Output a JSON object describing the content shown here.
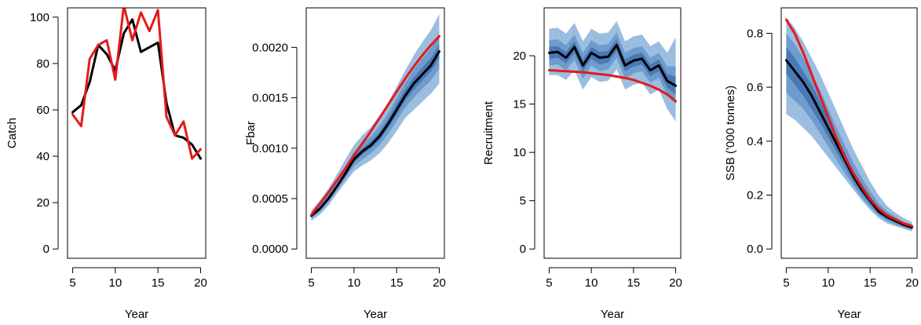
{
  "colors": {
    "band_outer": "#9bbde0",
    "band_mid": "#6e9ccc",
    "band_inner": "#4a78b4",
    "median_line": "#000000",
    "observed_line": "#e31a1c"
  },
  "chart_data": [
    {
      "type": "line",
      "xlabel": "Year",
      "ylabel": "Catch",
      "xlim": [
        5,
        20
      ],
      "ylim": [
        0,
        100
      ],
      "xticks": [
        "5",
        "10",
        "15",
        "20"
      ],
      "yticks": [
        "0",
        "20",
        "40",
        "60",
        "80",
        "100"
      ],
      "x": [
        5,
        6,
        7,
        8,
        9,
        10,
        11,
        12,
        13,
        14,
        15,
        16,
        17,
        18,
        19,
        20
      ],
      "series": [
        {
          "role": "median",
          "values": [
            59,
            62,
            72,
            88,
            84,
            77,
            93,
            99,
            85,
            87,
            89,
            63,
            49,
            48,
            45,
            39
          ]
        },
        {
          "role": "observed",
          "values": [
            58,
            53,
            82,
            88,
            90,
            73,
            105,
            90,
            102,
            94,
            103,
            57,
            49,
            55,
            39,
            43
          ]
        }
      ],
      "bands": []
    },
    {
      "type": "line",
      "xlabel": "Year",
      "ylabel": "Fbar",
      "xlim": [
        5,
        20
      ],
      "ylim": [
        0,
        0.0023
      ],
      "xticks": [
        "5",
        "10",
        "15",
        "20"
      ],
      "yticks": [
        "0.0000",
        "0.0005",
        "0.0010",
        "0.0015",
        "0.0020"
      ],
      "x": [
        5,
        6,
        7,
        8,
        9,
        10,
        11,
        12,
        13,
        14,
        15,
        16,
        17,
        18,
        19,
        20
      ],
      "series": [
        {
          "role": "median",
          "values": [
            0.00033,
            0.0004,
            0.0005,
            0.00062,
            0.00075,
            0.00089,
            0.00097,
            0.00103,
            0.00112,
            0.00124,
            0.00138,
            0.00152,
            0.00164,
            0.00173,
            0.00182,
            0.00196
          ]
        },
        {
          "role": "observed",
          "values": [
            0.00034,
            0.00045,
            0.00056,
            0.00068,
            0.0008,
            0.00093,
            0.00105,
            0.00117,
            0.0013,
            0.00143,
            0.00156,
            0.00169,
            0.00181,
            0.00192,
            0.00202,
            0.00211
          ]
        }
      ],
      "bands": [
        {
          "level": "outer",
          "lower": [
            0.00028,
            0.00034,
            0.00043,
            0.00055,
            0.00066,
            0.00077,
            0.00083,
            0.00088,
            0.00095,
            0.00105,
            0.00117,
            0.0013,
            0.00138,
            0.00146,
            0.00154,
            0.00164
          ],
          "upper": [
            0.00038,
            0.00048,
            0.0006,
            0.00074,
            0.00089,
            0.00103,
            0.00113,
            0.00121,
            0.00132,
            0.00145,
            0.00161,
            0.00177,
            0.00192,
            0.00205,
            0.00217,
            0.00233
          ]
        },
        {
          "level": "mid",
          "lower": [
            0.0003,
            0.00037,
            0.00046,
            0.00058,
            0.0007,
            0.00082,
            0.00089,
            0.00095,
            0.00103,
            0.00114,
            0.00127,
            0.0014,
            0.0015,
            0.00159,
            0.00167,
            0.00179
          ],
          "upper": [
            0.00036,
            0.00044,
            0.00055,
            0.00068,
            0.00082,
            0.00096,
            0.00105,
            0.00112,
            0.00122,
            0.00135,
            0.0015,
            0.00165,
            0.00178,
            0.00189,
            0.00199,
            0.00214
          ]
        },
        {
          "level": "inner",
          "lower": [
            0.00032,
            0.00039,
            0.00048,
            0.0006,
            0.00073,
            0.00086,
            0.00094,
            0.001,
            0.00108,
            0.0012,
            0.00133,
            0.00147,
            0.00158,
            0.00167,
            0.00176,
            0.00189
          ],
          "upper": [
            0.00034,
            0.00042,
            0.00052,
            0.00064,
            0.00078,
            0.00092,
            0.001,
            0.00107,
            0.00116,
            0.00129,
            0.00144,
            0.00158,
            0.0017,
            0.0018,
            0.00189,
            0.00203
          ]
        }
      ]
    },
    {
      "type": "line",
      "xlabel": "Year",
      "ylabel": "Recruitment",
      "xlim": [
        5,
        20
      ],
      "ylim": [
        0,
        24
      ],
      "xticks": [
        "5",
        "10",
        "15",
        "20"
      ],
      "yticks": [
        "0",
        "5",
        "10",
        "15",
        "20"
      ],
      "x": [
        5,
        6,
        7,
        8,
        9,
        10,
        11,
        12,
        13,
        14,
        15,
        16,
        17,
        18,
        19,
        20
      ],
      "series": [
        {
          "role": "median",
          "values": [
            20.3,
            20.4,
            19.8,
            20.9,
            19.0,
            20.3,
            19.8,
            19.9,
            21.1,
            19.0,
            19.5,
            19.7,
            18.5,
            19.0,
            17.4,
            16.9
          ]
        },
        {
          "role": "observed",
          "values": [
            18.5,
            18.45,
            18.4,
            18.35,
            18.3,
            18.2,
            18.1,
            18.0,
            17.85,
            17.7,
            17.5,
            17.2,
            16.9,
            16.5,
            16.0,
            15.3
          ]
        }
      ],
      "bands": [
        {
          "level": "outer",
          "lower": [
            18.0,
            18.0,
            17.5,
            18.5,
            16.5,
            17.8,
            17.3,
            17.4,
            18.6,
            16.5,
            17.0,
            17.2,
            16.0,
            16.5,
            14.5,
            13.2
          ],
          "upper": [
            22.8,
            22.9,
            22.3,
            23.4,
            21.5,
            22.8,
            22.3,
            22.4,
            23.6,
            21.5,
            22.0,
            22.2,
            21.0,
            21.5,
            20.3,
            21.9
          ]
        },
        {
          "level": "mid",
          "lower": [
            19.0,
            19.1,
            18.5,
            19.6,
            17.6,
            19.0,
            18.4,
            18.6,
            19.8,
            17.6,
            18.2,
            18.4,
            17.2,
            17.7,
            15.9,
            15.0
          ],
          "upper": [
            21.6,
            21.7,
            21.1,
            22.2,
            20.3,
            21.6,
            21.1,
            21.2,
            22.4,
            20.3,
            20.8,
            21.0,
            19.8,
            20.3,
            18.9,
            18.9
          ]
        },
        {
          "level": "inner",
          "lower": [
            19.7,
            19.8,
            19.2,
            20.3,
            18.4,
            19.7,
            19.1,
            19.3,
            20.5,
            18.4,
            18.9,
            19.1,
            17.9,
            18.4,
            16.7,
            16.0
          ],
          "upper": [
            20.9,
            21.0,
            20.4,
            21.5,
            19.6,
            20.9,
            20.4,
            20.5,
            21.7,
            19.6,
            20.1,
            20.3,
            19.1,
            19.6,
            18.1,
            17.8
          ]
        }
      ]
    },
    {
      "type": "line",
      "xlabel": "Year",
      "ylabel": "SSB ('000 tonnes)",
      "xlim": [
        5,
        20
      ],
      "ylim": [
        0,
        0.86
      ],
      "xticks": [
        "5",
        "10",
        "15",
        "20"
      ],
      "yticks": [
        "0.0",
        "0.2",
        "0.4",
        "0.6",
        "0.8"
      ],
      "x": [
        5,
        6,
        7,
        8,
        9,
        10,
        11,
        12,
        13,
        14,
        15,
        16,
        17,
        18,
        19,
        20
      ],
      "series": [
        {
          "role": "median",
          "values": [
            0.7,
            0.66,
            0.62,
            0.57,
            0.51,
            0.45,
            0.39,
            0.33,
            0.27,
            0.22,
            0.18,
            0.14,
            0.12,
            0.105,
            0.09,
            0.08
          ]
        },
        {
          "role": "observed",
          "values": [
            0.85,
            0.8,
            0.73,
            0.65,
            0.57,
            0.49,
            0.41,
            0.34,
            0.28,
            0.23,
            0.185,
            0.15,
            0.125,
            0.11,
            0.095,
            0.085
          ]
        }
      ],
      "bands": [
        {
          "level": "outer",
          "lower": [
            0.5,
            0.48,
            0.45,
            0.42,
            0.38,
            0.34,
            0.3,
            0.26,
            0.22,
            0.18,
            0.145,
            0.115,
            0.095,
            0.085,
            0.075,
            0.065
          ],
          "upper": [
            0.86,
            0.82,
            0.77,
            0.71,
            0.65,
            0.58,
            0.51,
            0.44,
            0.37,
            0.31,
            0.25,
            0.2,
            0.16,
            0.135,
            0.115,
            0.1
          ]
        },
        {
          "level": "mid",
          "lower": [
            0.58,
            0.55,
            0.52,
            0.48,
            0.43,
            0.38,
            0.33,
            0.28,
            0.235,
            0.19,
            0.155,
            0.125,
            0.105,
            0.09,
            0.08,
            0.07
          ],
          "upper": [
            0.8,
            0.76,
            0.71,
            0.65,
            0.59,
            0.52,
            0.45,
            0.385,
            0.32,
            0.265,
            0.215,
            0.17,
            0.14,
            0.12,
            0.1,
            0.09
          ]
        },
        {
          "level": "inner",
          "lower": [
            0.65,
            0.61,
            0.57,
            0.52,
            0.47,
            0.415,
            0.36,
            0.305,
            0.25,
            0.205,
            0.165,
            0.13,
            0.11,
            0.097,
            0.085,
            0.075
          ],
          "upper": [
            0.75,
            0.71,
            0.66,
            0.61,
            0.55,
            0.485,
            0.42,
            0.355,
            0.29,
            0.24,
            0.195,
            0.155,
            0.13,
            0.112,
            0.095,
            0.085
          ]
        }
      ]
    }
  ]
}
